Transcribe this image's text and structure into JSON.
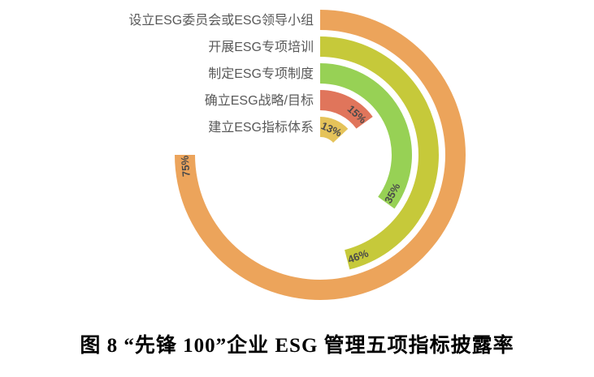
{
  "figure": {
    "caption": "图 8  “先锋 100”企业 ESG 管理五项指标披露率"
  },
  "chart_data": {
    "type": "radial_bar",
    "title": "“先锋100”企业ESG管理五项指标披露率",
    "unit": "%",
    "direction": "clockwise",
    "start_angle_deg": 0,
    "angle_per_percent_deg": 3.6,
    "value_range": [
      0,
      100
    ],
    "categories": [
      "设立ESG委员会或ESG领导小组",
      "开展ESG专项培训",
      "制定ESG专项制度",
      "确立ESG战略/目标",
      "建立ESG指标体系"
    ],
    "values": [
      75,
      46,
      35,
      15,
      13
    ],
    "value_labels": [
      "75%",
      "46%",
      "35%",
      "15%",
      "13%"
    ],
    "colors": [
      "#ECA45B",
      "#C6C93A",
      "#97D155",
      "#E0755B",
      "#E5C35A"
    ],
    "category_label_color": "#595959",
    "value_label_color": "#4a4a4a",
    "background_color": "#ffffff",
    "legend": "none",
    "grid": "off"
  }
}
